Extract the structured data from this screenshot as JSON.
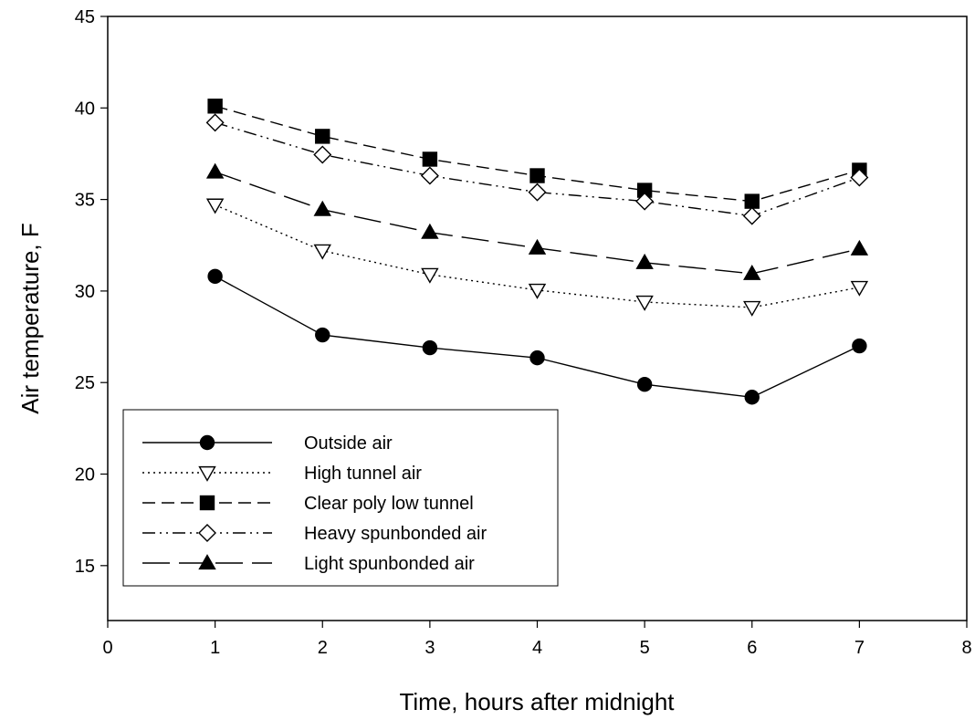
{
  "chart_data": {
    "type": "line",
    "title": "",
    "xlabel": "Time, hours after midnight",
    "ylabel": "Air temperature, F",
    "xlim": [
      0,
      8
    ],
    "ylim": [
      12,
      45
    ],
    "x_ticks": [
      0,
      1,
      2,
      3,
      4,
      5,
      6,
      7,
      8
    ],
    "y_ticks": [
      15,
      20,
      25,
      30,
      35,
      40,
      45
    ],
    "grid": false,
    "legend_position": "bottom-left",
    "x": [
      1,
      2,
      3,
      4,
      5,
      6,
      7
    ],
    "series": [
      {
        "name": "Outside air",
        "marker": "filled-circle",
        "dash": "solid",
        "values": [
          30.8,
          27.6,
          26.9,
          26.35,
          24.9,
          24.2,
          27.0
        ]
      },
      {
        "name": "High tunnel air",
        "marker": "open-triangle-down",
        "dash": "dotted",
        "values": [
          34.7,
          32.2,
          30.9,
          30.05,
          29.4,
          29.1,
          30.2
        ]
      },
      {
        "name": "Clear poly low tunnel",
        "marker": "filled-square",
        "dash": "dashed",
        "values": [
          40.1,
          38.45,
          37.2,
          36.3,
          35.5,
          34.9,
          36.6
        ]
      },
      {
        "name": "Heavy spunbonded air",
        "marker": "open-diamond",
        "dash": "dash-dot-dot",
        "values": [
          39.2,
          37.45,
          36.3,
          35.4,
          34.9,
          34.1,
          36.2
        ]
      },
      {
        "name": "Light spunbonded air",
        "marker": "filled-triangle-up",
        "dash": "long-dash",
        "values": [
          36.5,
          34.45,
          33.2,
          32.35,
          31.55,
          30.95,
          32.3
        ]
      }
    ]
  }
}
